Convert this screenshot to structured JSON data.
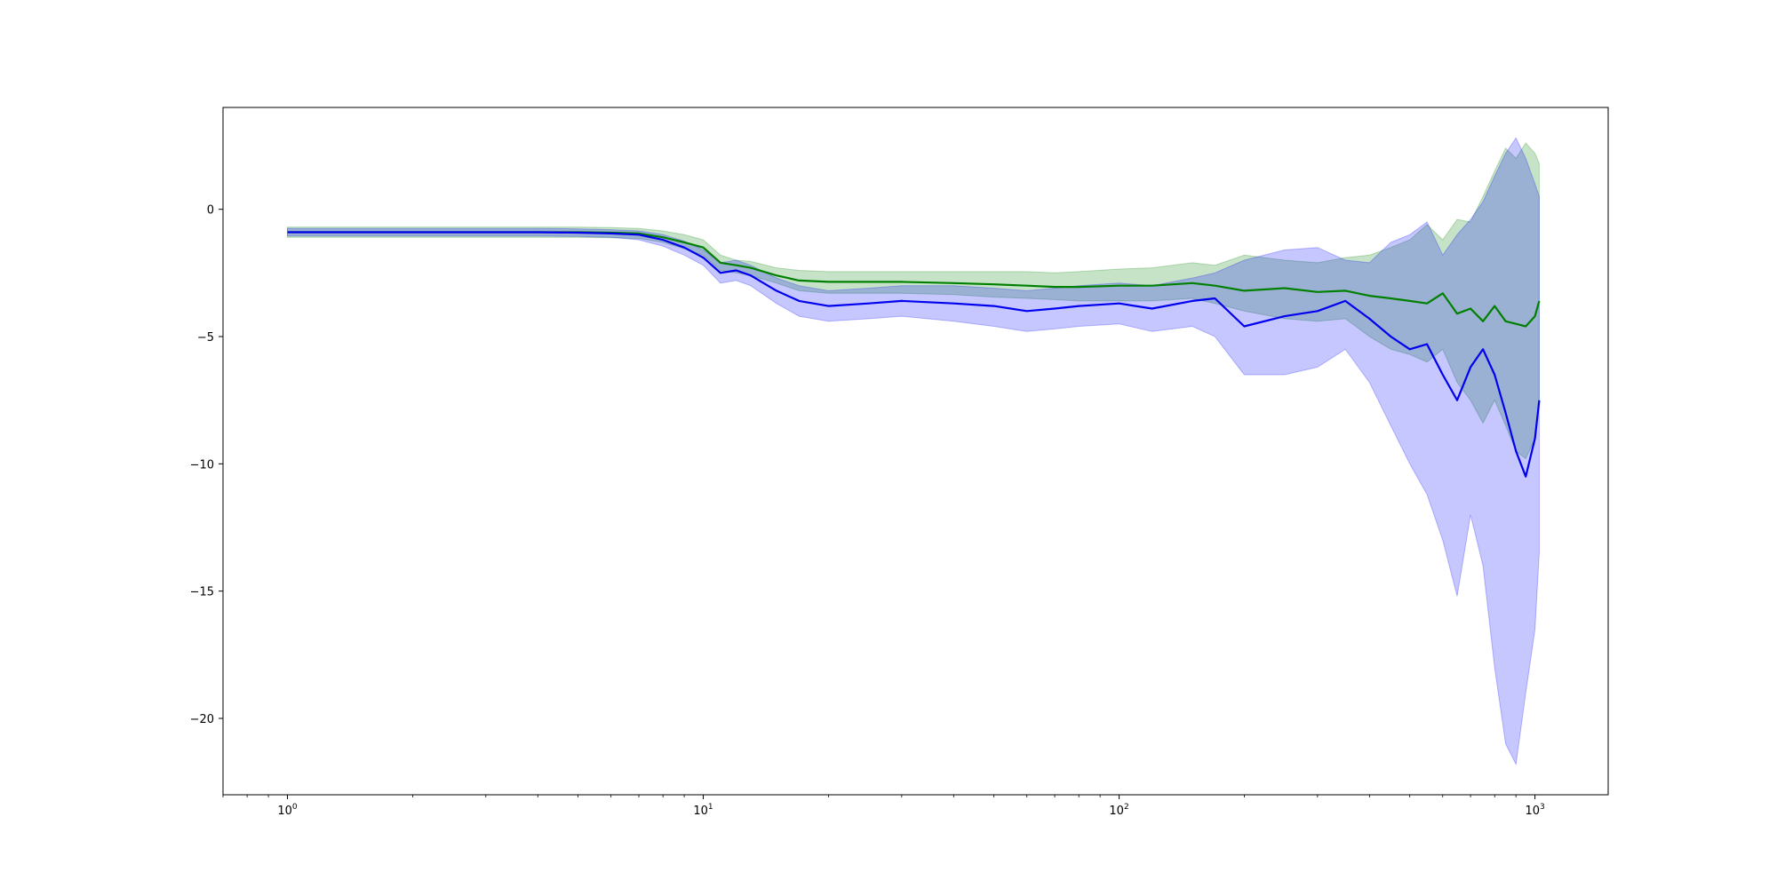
{
  "chart_data": {
    "type": "line",
    "title": "",
    "xlabel": "",
    "ylabel": "",
    "x_scale": "log",
    "xlim": [
      0.7,
      1500
    ],
    "ylim": [
      -23.0,
      4.0
    ],
    "grid": false,
    "legend": "none",
    "x_ticks": [
      {
        "value": 1,
        "base": "10",
        "exp": "0"
      },
      {
        "value": 10,
        "base": "10",
        "exp": "1"
      },
      {
        "value": 100,
        "base": "10",
        "exp": "2"
      },
      {
        "value": 1000,
        "base": "10",
        "exp": "3"
      }
    ],
    "y_ticks": [
      {
        "value": 0,
        "label": "0"
      },
      {
        "value": -5,
        "label": "−5"
      },
      {
        "value": -10,
        "label": "−10"
      },
      {
        "value": -15,
        "label": "−15"
      },
      {
        "value": -20,
        "label": "−20"
      }
    ],
    "series": [
      {
        "color": "#008000",
        "band_color": "#008000",
        "band_opacity": 0.22,
        "line_width": 2.2,
        "x": [
          1,
          2,
          3,
          4,
          5,
          6,
          7,
          8,
          9,
          10,
          11,
          12,
          13,
          15,
          17,
          20,
          25,
          30,
          40,
          50,
          60,
          70,
          80,
          100,
          120,
          150,
          170,
          200,
          250,
          300,
          350,
          400,
          450,
          500,
          550,
          600,
          650,
          700,
          750,
          800,
          850,
          900,
          950,
          1000,
          1024
        ],
        "y": [
          -0.9,
          -0.9,
          -0.9,
          -0.9,
          -0.9,
          -0.92,
          -0.95,
          -1.1,
          -1.3,
          -1.5,
          -2.1,
          -2.2,
          -2.3,
          -2.6,
          -2.8,
          -2.85,
          -2.85,
          -2.85,
          -2.9,
          -2.95,
          -3.0,
          -3.05,
          -3.05,
          -3.0,
          -3.0,
          -2.9,
          -3.0,
          -3.2,
          -3.1,
          -3.25,
          -3.2,
          -3.4,
          -3.5,
          -3.6,
          -3.7,
          -3.3,
          -4.1,
          -3.9,
          -4.4,
          -3.8,
          -4.4,
          -4.5,
          -4.6,
          -4.2,
          -3.6
        ],
        "upper": [
          -0.7,
          -0.7,
          -0.7,
          -0.7,
          -0.7,
          -0.72,
          -0.75,
          -0.85,
          -1.0,
          -1.2,
          -1.8,
          -2.0,
          -2.05,
          -2.3,
          -2.4,
          -2.45,
          -2.45,
          -2.45,
          -2.45,
          -2.45,
          -2.45,
          -2.5,
          -2.45,
          -2.35,
          -2.3,
          -2.1,
          -2.2,
          -1.8,
          -2.0,
          -2.1,
          -1.9,
          -1.8,
          -1.5,
          -1.2,
          -0.6,
          -1.2,
          -0.4,
          -0.5,
          0.5,
          1.5,
          2.4,
          2.0,
          2.6,
          2.2,
          1.8
        ],
        "lower": [
          -1.1,
          -1.1,
          -1.1,
          -1.1,
          -1.1,
          -1.12,
          -1.15,
          -1.3,
          -1.55,
          -1.8,
          -2.4,
          -2.5,
          -2.6,
          -2.9,
          -3.2,
          -3.3,
          -3.3,
          -3.3,
          -3.35,
          -3.45,
          -3.5,
          -3.55,
          -3.6,
          -3.6,
          -3.6,
          -3.5,
          -3.7,
          -4.0,
          -4.3,
          -4.4,
          -4.3,
          -5.0,
          -5.5,
          -5.7,
          -6.0,
          -5.5,
          -6.8,
          -7.5,
          -8.4,
          -7.5,
          -8.5,
          -9.5,
          -9.8,
          -9.0,
          -7.5
        ]
      },
      {
        "color": "#0000ee",
        "band_color": "#0000ff",
        "band_opacity": 0.22,
        "line_width": 2.2,
        "x": [
          1,
          2,
          3,
          4,
          5,
          6,
          7,
          8,
          9,
          10,
          11,
          12,
          13,
          15,
          17,
          20,
          25,
          30,
          40,
          50,
          60,
          70,
          80,
          100,
          120,
          150,
          170,
          200,
          250,
          300,
          350,
          400,
          450,
          500,
          550,
          600,
          650,
          700,
          750,
          800,
          850,
          900,
          950,
          1000,
          1024
        ],
        "y": [
          -0.9,
          -0.9,
          -0.9,
          -0.9,
          -0.92,
          -0.95,
          -1.0,
          -1.2,
          -1.5,
          -1.9,
          -2.5,
          -2.4,
          -2.6,
          -3.2,
          -3.6,
          -3.8,
          -3.7,
          -3.6,
          -3.7,
          -3.8,
          -4.0,
          -3.9,
          -3.8,
          -3.7,
          -3.9,
          -3.6,
          -3.5,
          -4.6,
          -4.2,
          -4.0,
          -3.6,
          -4.3,
          -5.0,
          -5.5,
          -5.3,
          -6.5,
          -7.5,
          -6.2,
          -5.5,
          -6.5,
          -8.0,
          -9.5,
          -10.5,
          -9.0,
          -7.5
        ],
        "upper": [
          -0.75,
          -0.75,
          -0.75,
          -0.75,
          -0.77,
          -0.8,
          -0.85,
          -1.0,
          -1.25,
          -1.6,
          -2.1,
          -2.0,
          -2.2,
          -2.7,
          -3.0,
          -3.2,
          -3.1,
          -3.0,
          -3.0,
          -3.1,
          -3.2,
          -3.1,
          -3.0,
          -2.9,
          -3.0,
          -2.7,
          -2.5,
          -2.0,
          -1.6,
          -1.5,
          -2.0,
          -2.1,
          -1.3,
          -1.0,
          -0.5,
          -1.8,
          -1.0,
          -0.4,
          0.3,
          1.3,
          2.2,
          2.8,
          2.0,
          1.0,
          0.5
        ],
        "lower": [
          -1.05,
          -1.05,
          -1.05,
          -1.05,
          -1.07,
          -1.1,
          -1.2,
          -1.45,
          -1.8,
          -2.2,
          -2.9,
          -2.8,
          -3.0,
          -3.7,
          -4.2,
          -4.4,
          -4.3,
          -4.2,
          -4.4,
          -4.6,
          -4.8,
          -4.7,
          -4.6,
          -4.5,
          -4.8,
          -4.6,
          -5.0,
          -6.5,
          -6.5,
          -6.2,
          -5.5,
          -6.8,
          -8.5,
          -10.0,
          -11.2,
          -13.0,
          -15.2,
          -12.0,
          -14.0,
          -18.0,
          -21.0,
          -21.8,
          -19.0,
          -16.5,
          -13.5
        ]
      }
    ]
  }
}
